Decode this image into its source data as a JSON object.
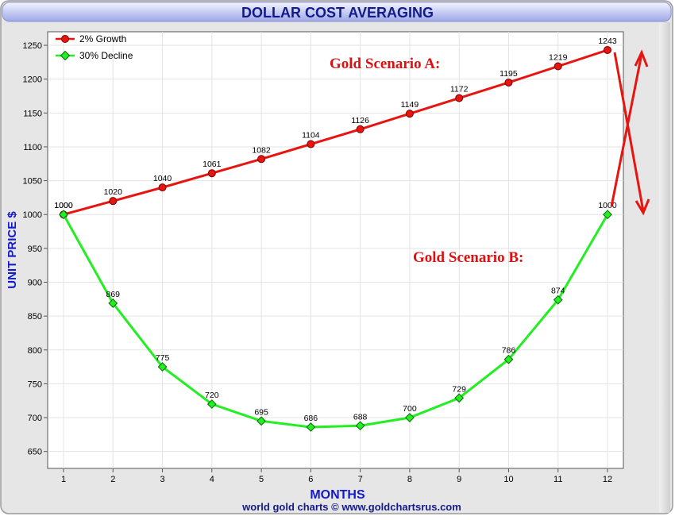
{
  "chart_data": {
    "type": "line",
    "title": "DOLLAR COST AVERAGING",
    "xlabel": "MONTHS",
    "ylabel": "UNIT PRICE $",
    "footer": "world gold charts © www.goldchartsrus.com",
    "x": [
      1,
      2,
      3,
      4,
      5,
      6,
      7,
      8,
      9,
      10,
      11,
      12
    ],
    "ylim": [
      625,
      1270
    ],
    "yticks": [
      650,
      700,
      750,
      800,
      850,
      900,
      950,
      1000,
      1050,
      1100,
      1150,
      1200,
      1250
    ],
    "grid": true,
    "legend_position": "top-left",
    "series": [
      {
        "name": "2% Growth",
        "color": "#e8140f",
        "marker": "circle",
        "values": [
          1000,
          1020,
          1040,
          1061,
          1082,
          1104,
          1126,
          1149,
          1172,
          1195,
          1219,
          1243
        ]
      },
      {
        "name": "30% Decline",
        "color": "#22ee22",
        "marker": "diamond",
        "values": [
          1000,
          869,
          775,
          720,
          695,
          686,
          688,
          700,
          729,
          786,
          874,
          1000
        ]
      }
    ],
    "annotations": [
      {
        "text": "Gold Scenario A:",
        "color": "#dd1111"
      },
      {
        "text": "Gold Scenario B:",
        "color": "#dd1111"
      }
    ]
  }
}
